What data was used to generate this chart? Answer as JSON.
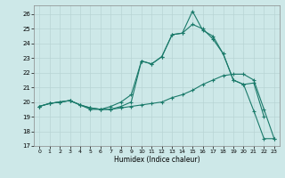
{
  "xlabel": "Humidex (Indice chaleur)",
  "bg_color": "#cde8e8",
  "grid_color": "#b8d4d4",
  "line_color": "#1a7a6a",
  "marker": "+",
  "markersize": 3.0,
  "linewidth": 0.8,
  "xlim": [
    -0.5,
    23.5
  ],
  "ylim": [
    17,
    26.6
  ],
  "yticks": [
    17,
    18,
    19,
    20,
    21,
    22,
    23,
    24,
    25,
    26
  ],
  "xticks": [
    0,
    1,
    2,
    3,
    4,
    5,
    6,
    7,
    8,
    9,
    10,
    11,
    12,
    13,
    14,
    15,
    16,
    17,
    18,
    19,
    20,
    21,
    22,
    23
  ],
  "line1_x": [
    0,
    1,
    2,
    3,
    4,
    5,
    6,
    7,
    8,
    9,
    10,
    11,
    12,
    13,
    14,
    15,
    16,
    17,
    18,
    19,
    20,
    21,
    22
  ],
  "line1_y": [
    19.7,
    19.9,
    20.0,
    20.1,
    19.8,
    19.6,
    19.5,
    19.5,
    19.7,
    20.0,
    22.8,
    22.6,
    23.1,
    24.6,
    24.7,
    26.2,
    24.9,
    24.5,
    23.3,
    21.5,
    21.2,
    21.3,
    19.0
  ],
  "line2_x": [
    0,
    1,
    2,
    3,
    4,
    5,
    6,
    7,
    8,
    9,
    10,
    11,
    12,
    13,
    14,
    15,
    16,
    17,
    18,
    19,
    20,
    21,
    22,
    23
  ],
  "line2_y": [
    19.7,
    19.9,
    20.0,
    20.1,
    19.8,
    19.6,
    19.5,
    19.7,
    20.0,
    20.5,
    22.8,
    22.6,
    23.1,
    24.6,
    24.7,
    25.3,
    25.0,
    24.3,
    23.3,
    21.5,
    21.2,
    19.4,
    17.5,
    17.5
  ],
  "line3_x": [
    0,
    1,
    2,
    3,
    4,
    5,
    6,
    7,
    8,
    9,
    10,
    11,
    12,
    13,
    14,
    15,
    16,
    17,
    18,
    19,
    20,
    21,
    22,
    23
  ],
  "line3_y": [
    19.7,
    19.9,
    20.0,
    20.1,
    19.8,
    19.5,
    19.5,
    19.5,
    19.6,
    19.7,
    19.8,
    19.9,
    20.0,
    20.3,
    20.5,
    20.8,
    21.2,
    21.5,
    21.8,
    21.9,
    21.9,
    21.5,
    19.5,
    17.5
  ]
}
